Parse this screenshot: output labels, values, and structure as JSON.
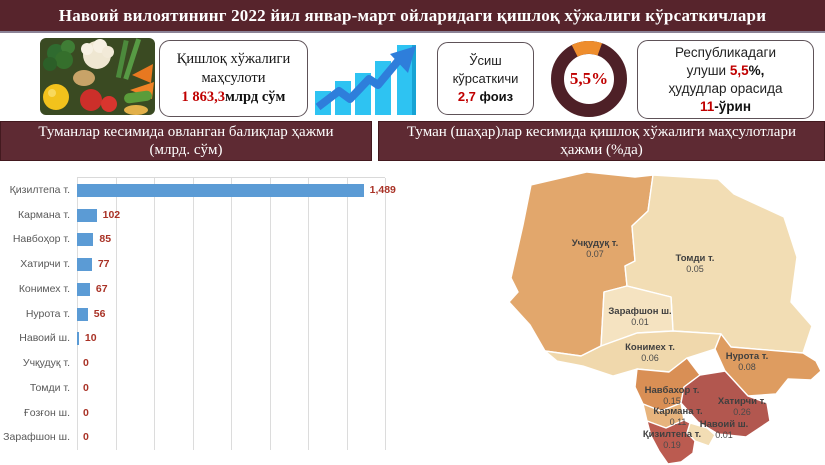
{
  "title": "Навоий вилоятининг 2022 йил январ-март ойларидаги қишлоқ хўжалиги кўрсаткичлари",
  "stats": {
    "production": {
      "label_line1": "Қишлоқ хўжалиги",
      "label_line2": "маҳсулоти",
      "value": "1 863,3",
      "unit": "млрд сўм"
    },
    "growth": {
      "label_line1": "Ўсиш",
      "label_line2": "кўрсаткичи",
      "value": "2,7",
      "unit": " фоиз"
    },
    "donut": {
      "center_text": "5,5%",
      "segment_pct": 5.5
    },
    "republic": {
      "line1": "Республикадаги",
      "line2_pre": "улуши ",
      "line2_value": "5,5",
      "line2_post": "%,",
      "line3": "ҳудудлар орасида",
      "line4_value": "11",
      "line4_post": "-ўрин"
    }
  },
  "panels": {
    "left": {
      "title_line1": "Туманлар кесимида овланган балиқлар ҳажми",
      "title_line2": "(млрд. сўм)"
    },
    "right": {
      "title_line1": "Туман (шаҳар)лар кесимида қишлоқ хўжалиги маҳсулотлари",
      "title_line2": "ҳажми (%да)"
    }
  },
  "chart_data": [
    {
      "type": "bar",
      "orientation": "horizontal",
      "title": "Туманлар кесимида овланган балиқлар ҳажми (млрд. сўм)",
      "categories": [
        "Қизилтепа т.",
        "Кармана т.",
        "Навбоҳор т.",
        "Хатирчи т.",
        "Конимех т.",
        "Нурота т.",
        "Навоий ш.",
        "Учқудуқ т.",
        "Томди т.",
        "Ғозғон ш.",
        "Зарафшон ш."
      ],
      "values": [
        1489,
        102,
        85,
        77,
        67,
        56,
        10,
        0,
        0,
        0,
        0
      ],
      "value_labels": [
        "1,489",
        "102",
        "85",
        "77",
        "67",
        "56",
        "10",
        "0",
        "0",
        "0",
        "0"
      ],
      "xlabel": "",
      "ylabel": "",
      "xlim": [
        0,
        1600
      ],
      "gridline_step": 200,
      "grid": true,
      "legend": false
    },
    {
      "type": "choropleth-map",
      "title": "Туман (шаҳар)лар кесимида қишлоқ хўжалиги маҳсулотлари ҳажми (%да)",
      "regions": [
        {
          "name": "Учқудуқ т.",
          "value": "0.07",
          "color": "#E2A76C"
        },
        {
          "name": "Томди т.",
          "value": "0.05",
          "color": "#F2DDB4"
        },
        {
          "name": "Зарафшон ш.",
          "value": "0.01",
          "color": "#F5E3C1"
        },
        {
          "name": "Конимех т.",
          "value": "0.06",
          "color": "#F0D8AC"
        },
        {
          "name": "Нурота т.",
          "value": "0.08",
          "color": "#DE9C60"
        },
        {
          "name": "Навбахор т.",
          "value": "0.15",
          "color": "#D98F55"
        },
        {
          "name": "Кармана т.",
          "value": "0.11",
          "color": "#E7B47D"
        },
        {
          "name": "Хатирчи т.",
          "value": "0.26",
          "color": "#B2574F"
        },
        {
          "name": "Навоий ш.",
          "value": "0.01",
          "color": "#F2DDB4"
        },
        {
          "name": "Қизилтепа т.",
          "value": "0.19",
          "color": "#BB5B50"
        }
      ]
    }
  ],
  "colors": {
    "title_bg": "#57242C",
    "panel_bg": "#5E2A33",
    "bar": "#5B9BD5",
    "bar_value_text": "#A93226",
    "donut_ring": "#4E2027",
    "donut_segment": "#EE8D2D",
    "accent_red": "#C00000"
  }
}
